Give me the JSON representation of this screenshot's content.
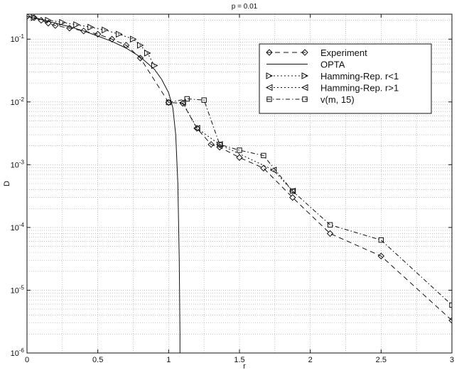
{
  "chart_data": {
    "type": "line",
    "title": "p = 0.01",
    "xlabel": "r",
    "ylabel": "D",
    "xlim": [
      0,
      3
    ],
    "ylim": [
      1e-06,
      0.25
    ],
    "yscale": "log",
    "grid": true,
    "legend_position": "top-right",
    "x_ticks": [
      {
        "value": 0,
        "label": "0"
      },
      {
        "value": 0.5,
        "label": "0.5"
      },
      {
        "value": 1,
        "label": "1"
      },
      {
        "value": 1.5,
        "label": "1.5"
      },
      {
        "value": 2,
        "label": "2"
      },
      {
        "value": 2.5,
        "label": "2.5"
      },
      {
        "value": 3,
        "label": "3"
      }
    ],
    "y_ticks": [
      {
        "value": 0.1,
        "base": "10",
        "exp": "-1"
      },
      {
        "value": 0.01,
        "base": "10",
        "exp": "-2"
      },
      {
        "value": 0.001,
        "base": "10",
        "exp": "-3"
      },
      {
        "value": 0.0001,
        "base": "10",
        "exp": "-4"
      },
      {
        "value": 1e-05,
        "base": "10",
        "exp": "-5"
      },
      {
        "value": 1e-06,
        "base": "10",
        "exp": "-6"
      }
    ],
    "series": [
      {
        "name": "Experiment",
        "marker": "diamond",
        "dash": "7,5",
        "x": [
          0,
          0.05,
          0.1,
          0.15,
          0.2,
          0.3,
          0.4,
          0.5,
          0.6,
          0.7,
          0.8,
          1.0,
          1.1,
          1.2,
          1.3,
          1.36,
          1.5,
          1.67,
          1.875,
          2.14,
          2.5,
          3.0
        ],
        "y": [
          0.23,
          0.22,
          0.2,
          0.18,
          0.165,
          0.15,
          0.135,
          0.12,
          0.1,
          0.08,
          0.05,
          0.0098,
          0.0095,
          0.0038,
          0.0021,
          0.0019,
          0.0013,
          0.00088,
          0.0003,
          8e-05,
          3.5e-05,
          3.3e-06
        ]
      },
      {
        "name": "OPTA",
        "marker": "none",
        "dash": "",
        "x": [
          0,
          0.1,
          0.2,
          0.3,
          0.4,
          0.5,
          0.6,
          0.7,
          0.8,
          0.9,
          0.95,
          1.0,
          1.03,
          1.05,
          1.065,
          1.075,
          1.08,
          1.08
        ],
        "y": [
          0.23,
          0.205,
          0.18,
          0.158,
          0.135,
          0.112,
          0.092,
          0.072,
          0.052,
          0.033,
          0.023,
          0.014,
          0.008,
          0.003,
          0.0005,
          3e-05,
          2e-06,
          1e-06
        ]
      },
      {
        "name": "Hamming-Rep. r<1",
        "marker": "triangle-right",
        "dash": "2,3",
        "x": [
          0.05,
          0.15,
          0.25,
          0.35,
          0.45,
          0.55,
          0.65,
          0.75,
          0.8,
          0.85,
          0.9
        ],
        "y": [
          0.22,
          0.2,
          0.185,
          0.17,
          0.155,
          0.14,
          0.12,
          0.1,
          0.08,
          0.06,
          0.038
        ]
      },
      {
        "name": "Hamming-Rep. r>1",
        "marker": "triangle-left",
        "dash": "2,3",
        "x": [
          1.1,
          1.2,
          1.36,
          1.74,
          1.875
        ],
        "y": [
          0.0098,
          0.0038,
          0.0021,
          0.00082,
          0.00038
        ]
      },
      {
        "name": "v(m, 15)",
        "marker": "square",
        "dash": "6,3,1.5,3",
        "x": [
          1.0,
          1.13,
          1.25,
          1.36,
          1.5,
          1.67,
          1.875,
          2.14,
          2.5,
          3.0
        ],
        "y": [
          0.0098,
          0.0112,
          0.0107,
          0.0021,
          0.0017,
          0.0014,
          0.00038,
          0.00011,
          6.3e-05,
          5.8e-06
        ]
      }
    ]
  }
}
